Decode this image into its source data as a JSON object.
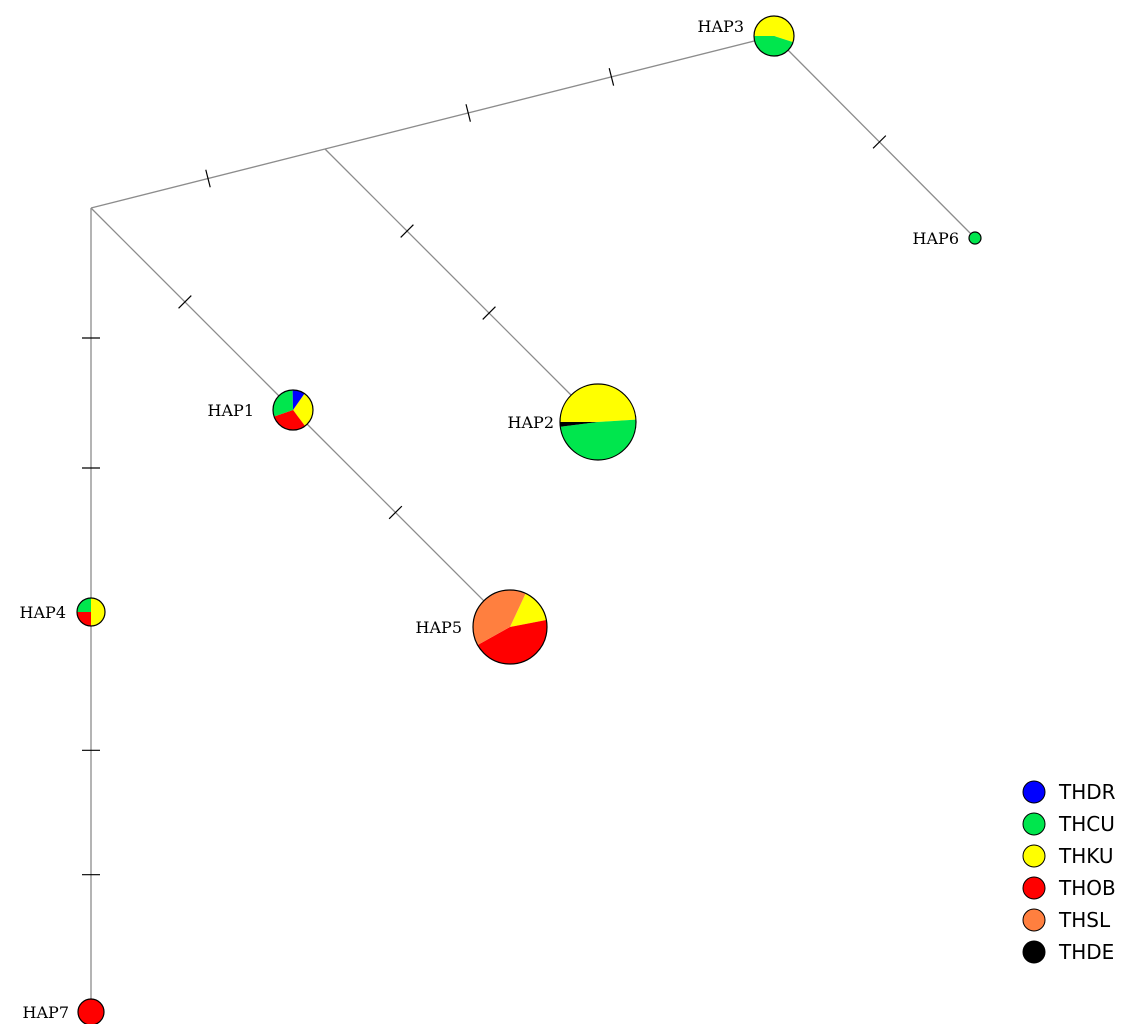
{
  "populations": [
    {
      "code": "THDR",
      "color": "#0000ff"
    },
    {
      "code": "THCU",
      "color": "#00e64d"
    },
    {
      "code": "THKU",
      "color": "#ffff00"
    },
    {
      "code": "THOB",
      "color": "#ff0000"
    },
    {
      "code": "THSL",
      "color": "#ff7f3f"
    },
    {
      "code": "THDE",
      "color": "#000000"
    }
  ],
  "haplotypes": [
    {
      "id": "HAP1",
      "label": "HAP1",
      "composition": {
        "THKU": 0.3,
        "THOB": 0.3,
        "THCU": 0.3,
        "THDR": 0.1
      }
    },
    {
      "id": "HAP2",
      "label": "HAP2",
      "composition": {
        "THKU": 0.49,
        "THCU": 0.49,
        "THDE": 0.02
      }
    },
    {
      "id": "HAP3",
      "label": "HAP3",
      "composition": {
        "THKU": 0.55,
        "THCU": 0.45
      }
    },
    {
      "id": "HAP4",
      "label": "HAP4",
      "composition": {
        "THKU": 0.5,
        "THOB": 0.25,
        "THCU": 0.25
      }
    },
    {
      "id": "HAP5",
      "label": "HAP5",
      "composition": {
        "THKU": 0.15,
        "THOB": 0.45,
        "THSL": 0.4
      }
    },
    {
      "id": "HAP6",
      "label": "HAP6",
      "composition": {
        "THCU": 1.0
      }
    },
    {
      "id": "HAP7",
      "label": "HAP7",
      "composition": {
        "THOB": 1.0
      }
    }
  ],
  "links": [
    {
      "from": "median-root",
      "to": "median-upper",
      "mutations": 1
    },
    {
      "from": "median-upper",
      "to": "HAP3",
      "mutations": 2
    },
    {
      "from": "HAP3",
      "to": "HAP6",
      "mutations": 1
    },
    {
      "from": "median-upper",
      "to": "HAP2",
      "mutations": 2
    },
    {
      "from": "median-root",
      "to": "HAP1",
      "mutations": 1
    },
    {
      "from": "HAP1",
      "to": "HAP5",
      "mutations": 1
    },
    {
      "from": "median-root",
      "to": "HAP4",
      "mutations": 2
    },
    {
      "from": "HAP4",
      "to": "HAP7",
      "mutations": 2
    }
  ]
}
